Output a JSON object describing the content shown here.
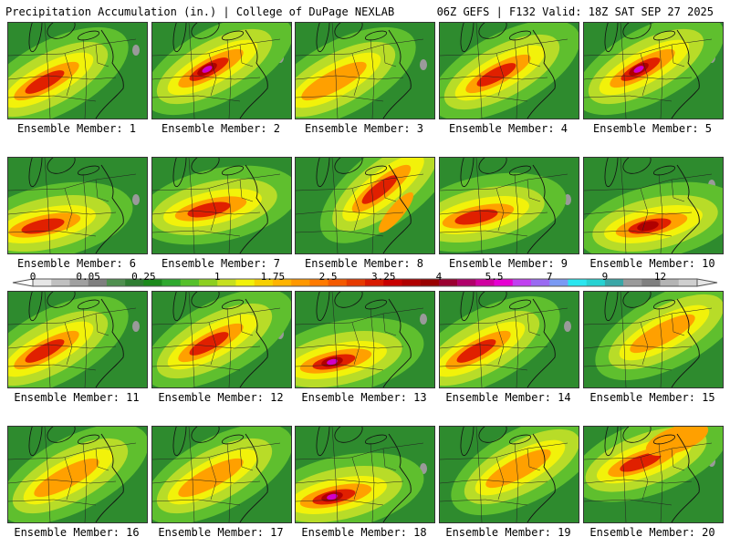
{
  "header": {
    "title": "Precipitation Accumulation (in.) | College of DuPage NEXLAB",
    "run_info": "06Z GEFS | F132 Valid: 18Z SAT SEP 27 2025"
  },
  "members": [
    "Ensemble Member: 1",
    "Ensemble Member: 2",
    "Ensemble Member: 3",
    "Ensemble Member: 4",
    "Ensemble Member: 5",
    "Ensemble Member: 6",
    "Ensemble Member: 7",
    "Ensemble Member: 8",
    "Ensemble Member: 9",
    "Ensemble Member: 10",
    "Ensemble Member: 11",
    "Ensemble Member: 12",
    "Ensemble Member: 13",
    "Ensemble Member: 14",
    "Ensemble Member: 15",
    "Ensemble Member: 16",
    "Ensemble Member: 17",
    "Ensemble Member: 18",
    "Ensemble Member: 19",
    "Ensemble Member: 20"
  ],
  "colorbar": {
    "labels": [
      "0",
      "0.05",
      "0.25",
      "1",
      "1.75",
      "2.5",
      "3.25",
      "4",
      "5.5",
      "7",
      "9",
      "12"
    ],
    "label_bins": [
      0,
      3,
      6,
      10,
      13,
      16,
      19,
      22,
      25,
      28,
      31,
      34
    ],
    "colors": [
      "#e6e6e6",
      "#c0c0c0",
      "#a0a0a0",
      "#7f7f7f",
      "#4f8f4f",
      "#2e7d32",
      "#1b8a1b",
      "#2ea82e",
      "#55c02a",
      "#8ccf20",
      "#c6e020",
      "#f2f20a",
      "#f7d000",
      "#ffb400",
      "#ff9800",
      "#ff7a00",
      "#f45a00",
      "#e63a00",
      "#d81a00",
      "#c80000",
      "#b00000",
      "#980000",
      "#9a0030",
      "#b0006a",
      "#d000a0",
      "#e600d2",
      "#c040f0",
      "#9a6af2",
      "#7a9af4",
      "#2ae6f0",
      "#26d2d2",
      "#3aa6a6",
      "#9a9a9a",
      "#808080",
      "#b4b4b4",
      "#cfcfcf"
    ]
  },
  "map_colors": {
    "base_green": "#2e8b2e",
    "light_green": "#5fbf2e",
    "yellow_green": "#b8dc28",
    "yellow": "#f2f20a",
    "orange": "#ffa000",
    "red": "#e02000",
    "dark_red": "#b00000",
    "magenta": "#d000c8",
    "gray": "#9a9a9a"
  },
  "members_precip": [
    {
      "band": "sw-ne",
      "intensity": 2,
      "core": "west"
    },
    {
      "band": "sw-ne",
      "intensity": 3,
      "core": "center-max"
    },
    {
      "band": "sw-ne",
      "intensity": 1,
      "core": "west"
    },
    {
      "band": "sw-ne",
      "intensity": 2,
      "core": "center"
    },
    {
      "band": "sw-ne",
      "intensity": 3,
      "core": "center-max"
    },
    {
      "band": "south",
      "intensity": 2,
      "core": "southwest"
    },
    {
      "band": "south",
      "intensity": 2,
      "core": "center"
    },
    {
      "band": "ne-coast",
      "intensity": 2,
      "core": "northeast"
    },
    {
      "band": "south",
      "intensity": 2,
      "core": "west"
    },
    {
      "band": "south",
      "intensity": 3,
      "core": "south"
    },
    {
      "band": "sw-ne",
      "intensity": 2,
      "core": "west"
    },
    {
      "band": "sw-ne",
      "intensity": 2,
      "core": "center"
    },
    {
      "band": "south",
      "intensity": 3,
      "core": "southwest-max"
    },
    {
      "band": "sw-ne",
      "intensity": 2,
      "core": "west"
    },
    {
      "band": "sw-ne",
      "intensity": 1,
      "core": "east"
    },
    {
      "band": "sw-ne",
      "intensity": 1,
      "core": "center"
    },
    {
      "band": "sw-ne",
      "intensity": 1,
      "core": "center"
    },
    {
      "band": "south",
      "intensity": 3,
      "core": "southwest-max"
    },
    {
      "band": "sw-ne",
      "intensity": 1,
      "core": "east"
    },
    {
      "band": "wide",
      "intensity": 2,
      "core": "north"
    }
  ]
}
